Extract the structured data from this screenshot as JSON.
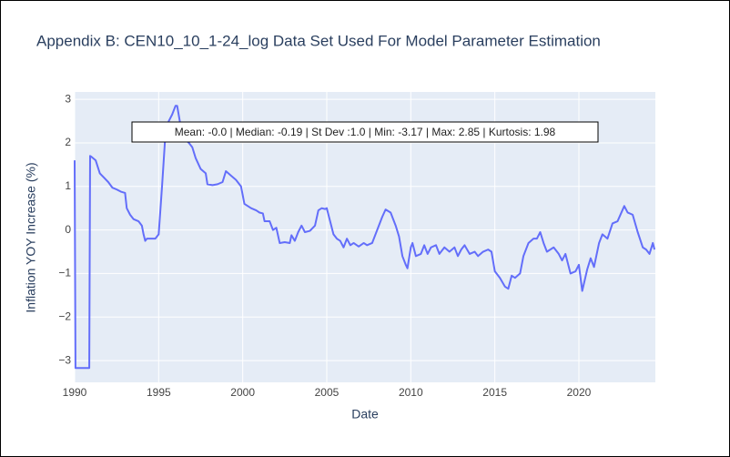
{
  "chart_data": {
    "type": "line",
    "title": "Appendix B: CEN10_10_1-24_log Data Set Used For Model Parameter Estimation",
    "x_label": "Date",
    "y_label": "Inflation YOY Increase (%)",
    "annotation": "Mean: -0.0 | Median: -0.19 | St Dev :1.0 | Min: -3.17 | Max: 2.85 | Kurtosis: 1.98",
    "color": "#636efa",
    "grid": true,
    "xlim": [
      1990,
      2024.55
    ],
    "xticks": [
      1990,
      1995,
      2000,
      2005,
      2010,
      2015,
      2020
    ],
    "ylim": [
      -3.5,
      3.17
    ],
    "yticks": [
      {
        "value": -3,
        "label": "−3"
      },
      {
        "value": -2,
        "label": "−2"
      },
      {
        "value": -1,
        "label": "−1"
      },
      0,
      1,
      2,
      3
    ],
    "x": [
      1990.0,
      1990.05,
      1990.87,
      1990.92,
      1991.0,
      1991.25,
      1991.5,
      1991.75,
      1992.0,
      1992.25,
      1992.5,
      1992.75,
      1993.0,
      1993.1,
      1993.3,
      1993.5,
      1993.8,
      1994.0,
      1994.1,
      1994.2,
      1994.3,
      1994.6,
      1994.8,
      1995.0,
      1995.2,
      1995.4,
      1995.6,
      1995.8,
      1996.0,
      1996.1,
      1996.3,
      1996.5,
      1996.8,
      1997.0,
      1997.2,
      1997.5,
      1997.8,
      1997.9,
      1998.2,
      1998.5,
      1998.8,
      1999.0,
      1999.3,
      1999.6,
      1999.9,
      2000.0,
      2000.1,
      2000.5,
      2000.8,
      2001.0,
      2001.2,
      2001.3,
      2001.6,
      2001.8,
      2002.0,
      2002.2,
      2002.5,
      2002.8,
      2002.9,
      2003.1,
      2003.3,
      2003.5,
      2003.7,
      2004.0,
      2004.3,
      2004.5,
      2004.7,
      2004.9,
      2005.0,
      2005.2,
      2005.4,
      2005.6,
      2005.8,
      2006.0,
      2006.2,
      2006.4,
      2006.6,
      2006.9,
      2007.2,
      2007.4,
      2007.7,
      2008.0,
      2008.3,
      2008.5,
      2008.8,
      2009.1,
      2009.3,
      2009.5,
      2009.7,
      2009.8,
      2010.0,
      2010.1,
      2010.3,
      2010.6,
      2010.8,
      2011.0,
      2011.2,
      2011.5,
      2011.7,
      2012.0,
      2012.3,
      2012.6,
      2012.8,
      2013.0,
      2013.2,
      2013.5,
      2013.8,
      2014.0,
      2014.3,
      2014.6,
      2014.8,
      2015.0,
      2015.3,
      2015.6,
      2015.8,
      2016.0,
      2016.2,
      2016.5,
      2016.7,
      2017.0,
      2017.3,
      2017.5,
      2017.7,
      2017.9,
      2018.1,
      2018.5,
      2018.8,
      2019.0,
      2019.2,
      2019.5,
      2019.8,
      2020.0,
      2020.2,
      2020.5,
      2020.7,
      2020.9,
      2021.2,
      2021.4,
      2021.7,
      2022.0,
      2022.3,
      2022.7,
      2022.9,
      2023.2,
      2023.5,
      2023.8,
      2024.0,
      2024.2,
      2024.4,
      2024.5
    ],
    "values": [
      1.6,
      -3.17,
      -3.17,
      1.7,
      1.68,
      1.6,
      1.3,
      1.2,
      1.1,
      0.97,
      0.93,
      0.88,
      0.85,
      0.5,
      0.35,
      0.25,
      0.2,
      0.1,
      -0.1,
      -0.25,
      -0.2,
      -0.2,
      -0.2,
      -0.1,
      1.0,
      2.2,
      2.5,
      2.65,
      2.85,
      2.85,
      2.4,
      2.1,
      2.0,
      1.9,
      1.65,
      1.4,
      1.3,
      1.05,
      1.03,
      1.05,
      1.1,
      1.35,
      1.25,
      1.15,
      1.0,
      0.8,
      0.6,
      0.5,
      0.45,
      0.4,
      0.38,
      0.2,
      0.2,
      0.0,
      0.05,
      -0.3,
      -0.28,
      -0.3,
      -0.12,
      -0.25,
      -0.05,
      0.1,
      -0.05,
      -0.02,
      0.1,
      0.45,
      0.5,
      0.48,
      0.5,
      0.2,
      -0.1,
      -0.2,
      -0.25,
      -0.4,
      -0.2,
      -0.35,
      -0.3,
      -0.38,
      -0.3,
      -0.35,
      -0.3,
      0.0,
      0.3,
      0.47,
      0.4,
      0.1,
      -0.15,
      -0.6,
      -0.8,
      -0.88,
      -0.4,
      -0.3,
      -0.6,
      -0.55,
      -0.35,
      -0.55,
      -0.4,
      -0.35,
      -0.55,
      -0.4,
      -0.5,
      -0.4,
      -0.6,
      -0.45,
      -0.35,
      -0.55,
      -0.5,
      -0.6,
      -0.5,
      -0.45,
      -0.5,
      -0.95,
      -1.1,
      -1.3,
      -1.35,
      -1.05,
      -1.1,
      -1.0,
      -0.6,
      -0.3,
      -0.2,
      -0.2,
      -0.05,
      -0.3,
      -0.5,
      -0.4,
      -0.55,
      -0.7,
      -0.55,
      -1.0,
      -0.95,
      -0.8,
      -1.4,
      -0.9,
      -0.65,
      -0.85,
      -0.3,
      -0.1,
      -0.2,
      0.15,
      0.2,
      0.55,
      0.4,
      0.35,
      -0.05,
      -0.4,
      -0.45,
      -0.55,
      -0.3,
      -0.45
    ]
  }
}
